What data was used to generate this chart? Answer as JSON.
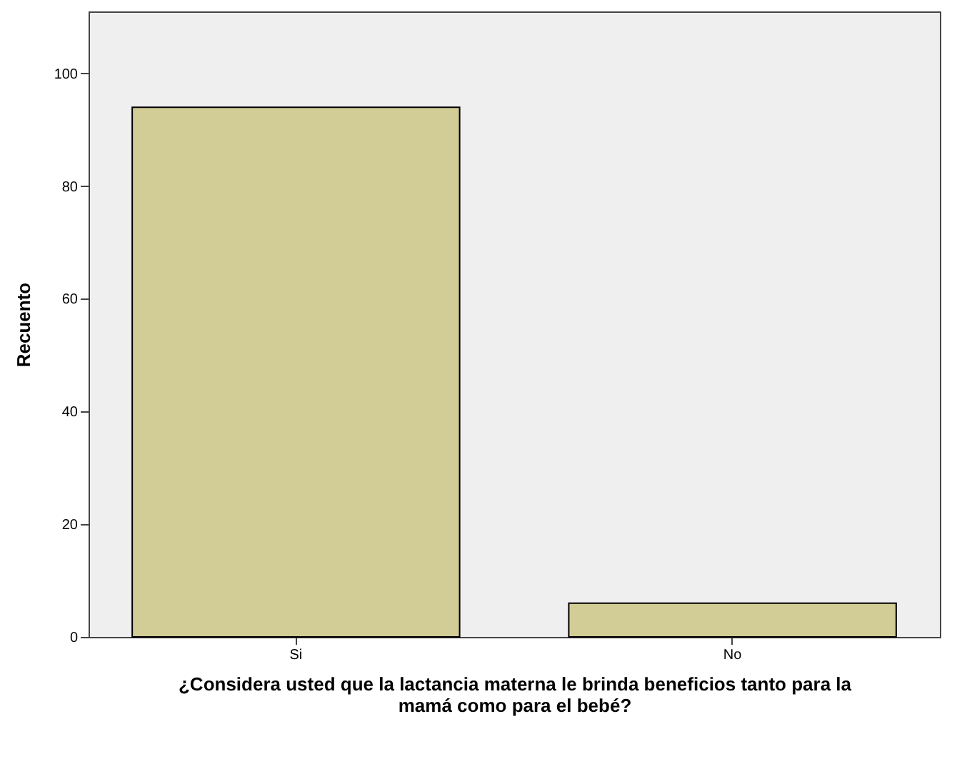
{
  "chart_data": {
    "type": "bar",
    "xlabel": "¿Considera usted que la lactancia materna le brinda beneficios tanto para la\nmamá como para el bebé?",
    "ylabel": "Recuento",
    "categories": [
      "Si",
      "No"
    ],
    "values": [
      94,
      6
    ],
    "color": "#d2cd96",
    "ylim": [
      0,
      111
    ],
    "yticks": [
      0,
      20,
      40,
      60,
      80,
      100
    ],
    "grid": false
  }
}
